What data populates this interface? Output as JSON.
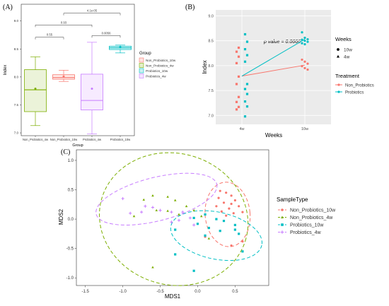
{
  "panels": {
    "A": {
      "tag": "(A)",
      "xlabel": "Group",
      "ylabel": "Index",
      "legend_title": "Group",
      "chart_data": {
        "type": "box",
        "categories": [
          "Non_Probiotics_4w",
          "Non_Probiotics_10w",
          "Probiotics_4w",
          "Probiotics_10w"
        ],
        "yticks": [
          7.0,
          7.5,
          8.0,
          8.5,
          9.0
        ],
        "ylim": [
          6.95,
          9.3
        ],
        "boxes": [
          {
            "name": "Non_Probiotics_4w",
            "color": "#7CAE00",
            "min": 7.13,
            "q1": 7.38,
            "median": 7.77,
            "q3": 8.13,
            "max": 8.36,
            "mean": 7.79
          },
          {
            "name": "Non_Probiotics_10w",
            "color": "#F8766D",
            "min": 7.92,
            "q1": 7.96,
            "median": 7.99,
            "q3": 8.04,
            "max": 8.12,
            "mean": 8.01
          },
          {
            "name": "Probiotics_4w",
            "color": "#C77CFF",
            "min": 6.98,
            "q1": 7.41,
            "median": 7.58,
            "q3": 8.05,
            "max": 8.62,
            "mean": 7.79
          },
          {
            "name": "Probiotics_10w",
            "color": "#00BFC4",
            "min": 8.43,
            "q1": 8.49,
            "median": 8.52,
            "q3": 8.55,
            "max": 8.57,
            "mean": 8.53
          }
        ],
        "comparisons": [
          {
            "from": 0,
            "to": 1,
            "label": "0.55",
            "y": 8.71
          },
          {
            "from": 2,
            "to": 3,
            "label": "0.0056",
            "y": 8.74
          },
          {
            "from": 0,
            "to": 2,
            "label": "0.93",
            "y": 8.93
          },
          {
            "from": 1,
            "to": 3,
            "label": "4.1e-05",
            "y": 9.14
          }
        ],
        "legend": [
          {
            "label": "Non_Probiotics_10w",
            "color": "#F8766D"
          },
          {
            "label": "Non_Probiotics_4w",
            "color": "#7CAE00"
          },
          {
            "label": "Probiotics_10w",
            "color": "#00BFC4"
          },
          {
            "label": "Probiotics_4w",
            "color": "#C77CFF"
          }
        ]
      }
    },
    "B": {
      "tag": "(B)",
      "xlabel": "Weeks",
      "ylabel": "Index",
      "annotation": "p value = 0.0666",
      "legend_weeks_title": "Weeks",
      "legend_weeks": [
        {
          "label": "10w",
          "shape": "circle"
        },
        {
          "label": "4w",
          "shape": "triangle"
        }
      ],
      "legend_treat_title": "Treatment",
      "legend_treat": [
        {
          "label": "Non_Probiotics",
          "color": "#F8766D"
        },
        {
          "label": "Probiotics",
          "color": "#00BFC4"
        }
      ],
      "chart_data": {
        "type": "scatter",
        "categories": [
          "4w",
          "10w"
        ],
        "yticks": [
          7.0,
          7.5,
          8.0,
          8.5,
          9.0
        ],
        "ylim": [
          6.82,
          9.12
        ],
        "series": [
          {
            "name": "Non_Probiotics",
            "color": "#F8766D",
            "points_4w": [
              8.36,
              8.28,
              8.18,
              8.05,
              7.78,
              7.63,
              7.37,
              7.27,
              7.17,
              7.12
            ],
            "points_10w": [
              8.12,
              8.08,
              8.04,
              7.99,
              7.95,
              7.92
            ],
            "line": [
              7.79,
              8.01
            ]
          },
          {
            "name": "Probiotics",
            "color": "#00BFC4",
            "points_4w": [
              8.63,
              8.48,
              8.33,
              8.21,
              8.08,
              7.63,
              7.53,
              7.43,
              7.28,
              7.18,
              6.98
            ],
            "points_10w": [
              8.67,
              8.56,
              8.53,
              8.52,
              8.5,
              8.48,
              8.45,
              8.43
            ],
            "line": [
              7.79,
              8.53
            ]
          }
        ]
      }
    },
    "C": {
      "tag": "(C)",
      "xlabel": "MDS1",
      "ylabel": "MDS2",
      "legend_title": "SampleType",
      "chart_data": {
        "type": "scatter",
        "xticks": [
          -1.5,
          -1.0,
          -0.5,
          0.0,
          0.5
        ],
        "yticks": [
          -1.0,
          -0.5,
          0.0,
          0.5,
          1.0
        ],
        "xlim": [
          -1.62,
          0.95
        ],
        "ylim": [
          -1.13,
          1.18
        ],
        "series": [
          {
            "name": "Non_Probiotics_10w",
            "color": "#F8766D",
            "shape": "circle",
            "points": [
              [
                0.3,
                0.48
              ],
              [
                0.38,
                0.45
              ],
              [
                0.45,
                0.4
              ],
              [
                0.28,
                0.36
              ],
              [
                0.5,
                0.32
              ],
              [
                0.35,
                0.28
              ],
              [
                0.45,
                0.26
              ],
              [
                0.25,
                0.22
              ],
              [
                0.55,
                0.22
              ],
              [
                0.42,
                0.18
              ],
              [
                0.32,
                0.13
              ],
              [
                0.48,
                0.1
              ],
              [
                0.38,
                0.06
              ],
              [
                0.6,
                0.12
              ],
              [
                0.1,
                -0.3
              ],
              [
                0.45,
                -0.45
              ],
              [
                0.6,
                -0.38
              ]
            ],
            "ellipse": {
              "cx": 0.4,
              "cy": 0.08,
              "rx": 0.3,
              "ry": 0.55,
              "angle": 5
            }
          },
          {
            "name": "Non_Probiotics_4w",
            "color": "#7CAE00",
            "shape": "triangle",
            "points": [
              [
                -0.6,
                0.4
              ],
              [
                -0.72,
                0.33
              ],
              [
                -0.4,
                0.38
              ],
              [
                -0.3,
                0.32
              ],
              [
                -0.55,
                0.15
              ],
              [
                -0.85,
                0.05
              ],
              [
                -0.4,
                0.14
              ],
              [
                -0.15,
                0.22
              ],
              [
                -0.05,
                0.15
              ],
              [
                -0.25,
                0.08
              ],
              [
                0.05,
                0.05
              ],
              [
                -0.6,
                -0.82
              ],
              [
                0.15,
                -0.33
              ]
            ],
            "ellipse": {
              "cx": -0.32,
              "cy": 0.0,
              "rx": 1.0,
              "ry": 1.12,
              "angle": -15
            }
          },
          {
            "name": "Probiotics_10w",
            "color": "#00BFC4",
            "shape": "square",
            "points": [
              [
                0.1,
                0.08
              ],
              [
                -0.05,
                0.02
              ],
              [
                0.25,
                0.0
              ],
              [
                0.0,
                -0.08
              ],
              [
                0.35,
                -0.03
              ],
              [
                0.15,
                -0.15
              ],
              [
                0.1,
                -0.28
              ],
              [
                0.55,
                -0.25
              ],
              [
                0.5,
                -0.18
              ],
              [
                0.3,
                -0.2
              ],
              [
                -0.3,
                -0.18
              ],
              [
                -0.3,
                -0.6
              ],
              [
                -0.05,
                -0.88
              ],
              [
                0.6,
                -0.55
              ],
              [
                0.5,
                -0.1
              ]
            ],
            "ellipse": {
              "cx": 0.25,
              "cy": -0.28,
              "rx": 0.62,
              "ry": 0.4,
              "angle": -12
            }
          },
          {
            "name": "Probiotics_4w",
            "color": "#C77CFF",
            "shape": "plus",
            "points": [
              [
                -1.0,
                0.35
              ],
              [
                -0.75,
                0.12
              ],
              [
                -0.9,
                0.1
              ],
              [
                -0.7,
                0.22
              ],
              [
                -0.6,
                0.2
              ],
              [
                -0.5,
                0.15
              ],
              [
                -0.35,
                0.12
              ],
              [
                -0.2,
                0.12
              ],
              [
                -0.25,
                -0.02
              ],
              [
                -0.1,
                0.02
              ],
              [
                -0.35,
                -0.05
              ],
              [
                -0.05,
                -0.1
              ]
            ],
            "ellipse": {
              "cx": -0.55,
              "cy": 0.34,
              "rx": 0.83,
              "ry": 0.37,
              "angle": 14
            }
          }
        ]
      }
    }
  }
}
